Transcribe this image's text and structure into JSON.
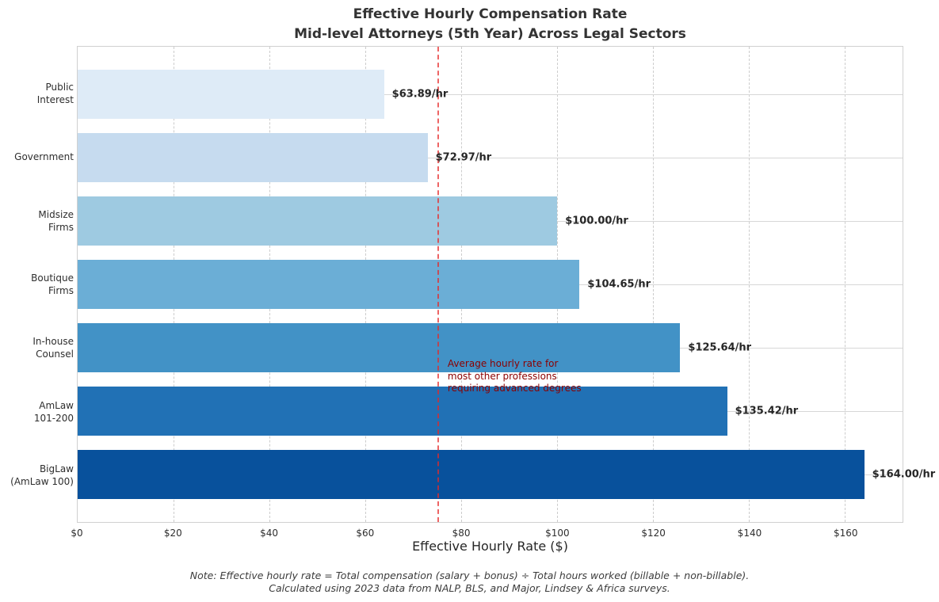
{
  "chart_data": {
    "type": "bar",
    "orientation": "horizontal",
    "title": "Effective Hourly Compensation Rate\nMid-level Attorneys (5th Year) Across Legal Sectors",
    "xlabel": "Effective Hourly Rate ($)",
    "ylabel": "",
    "categories": [
      "Public\nInterest",
      "Government",
      "Midsize\nFirms",
      "Boutique\nFirms",
      "In-house\nCounsel",
      "AmLaw\n101-200",
      "BigLaw\n(AmLaw 100)"
    ],
    "values": [
      63.89,
      72.97,
      100.0,
      104.65,
      125.64,
      135.42,
      164.0
    ],
    "value_labels": [
      "$63.89/hr",
      "$72.97/hr",
      "$100.00/hr",
      "$104.65/hr",
      "$125.64/hr",
      "$135.42/hr",
      "$164.00/hr"
    ],
    "bar_colors": [
      "#deebf7",
      "#c6dbef",
      "#9ecae1",
      "#6baed6",
      "#4292c6",
      "#2171b5",
      "#08519c"
    ],
    "xlim": [
      0,
      172
    ],
    "x_ticks": [
      0,
      20,
      40,
      60,
      80,
      100,
      120,
      140,
      160
    ],
    "x_tick_labels": [
      "$0",
      "$20",
      "$40",
      "$60",
      "$80",
      "$100",
      "$120",
      "$140",
      "$160"
    ],
    "grid": {
      "vertical": "dashed",
      "horizontal": "solid",
      "color_vertical": "#cccccc",
      "color_horizontal": "#d7d7d7"
    },
    "legend": "none",
    "reference_line": {
      "value": 75,
      "color": "#f26b6b",
      "style": "dashed",
      "label": "Average hourly rate for\nmost other professions\nrequiring advanced degrees",
      "label_color": "#8b0000"
    }
  },
  "footer": {
    "text": "Note: Effective hourly rate = Total compensation (salary + bonus) ÷ Total hours worked (billable + non-billable).\nCalculated using 2023 data from NALP, BLS, and Major, Lindsey & Africa surveys."
  }
}
